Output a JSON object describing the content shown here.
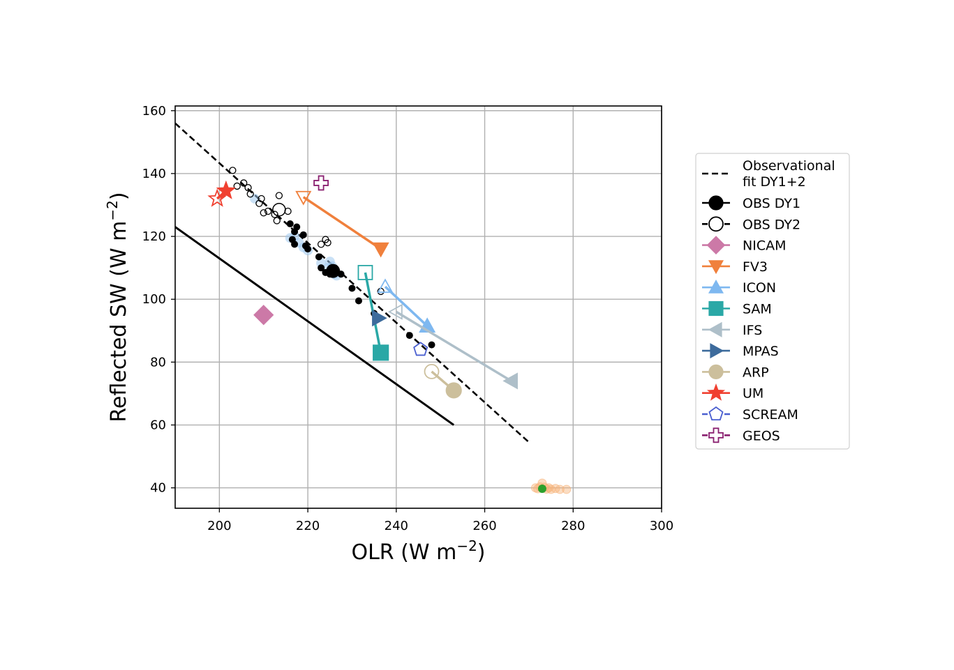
{
  "chart_data": {
    "type": "scatter",
    "xlabel": "OLR (W m",
    "xlabel_sup": "−2",
    "xlabel_tail": ")",
    "ylabel": "Reflected SW (W m",
    "ylabel_sup": "−2",
    "ylabel_tail": ")",
    "xlim": [
      190,
      300
    ],
    "ylim": [
      33.5,
      161.5
    ],
    "xticks": [
      200,
      220,
      240,
      260,
      280,
      300
    ],
    "yticks": [
      40,
      60,
      80,
      100,
      120,
      140,
      160
    ],
    "grid": true,
    "legend_position": "right, outside plot",
    "observational_fit": {
      "x": [
        190,
        270
      ],
      "y": [
        156,
        54.5
      ]
    },
    "reference_line": {
      "x": [
        190,
        253
      ],
      "y": [
        123,
        60
      ]
    },
    "obs_dy1_points": [
      [
        216,
        124
      ],
      [
        217,
        121.5
      ],
      [
        217.5,
        123
      ],
      [
        217,
        117.5
      ],
      [
        216.5,
        119
      ],
      [
        219,
        120.5
      ],
      [
        219.5,
        117
      ],
      [
        220,
        116
      ],
      [
        222.5,
        113.5
      ],
      [
        223,
        110
      ],
      [
        224,
        108.5
      ],
      [
        225,
        108
      ],
      [
        226,
        109
      ],
      [
        227.5,
        108
      ],
      [
        230,
        103.5
      ],
      [
        231.5,
        99.5
      ],
      [
        235,
        95.5
      ],
      [
        243,
        88.5
      ],
      [
        248,
        85.5
      ]
    ],
    "obs_dy1_mean": [
      225.7,
      109
    ],
    "obs_dy2_points": [
      [
        203,
        141
      ],
      [
        204,
        136
      ],
      [
        205.5,
        137
      ],
      [
        206.5,
        135.5
      ],
      [
        207,
        133.5
      ],
      [
        209,
        130.5
      ],
      [
        209.5,
        132
      ],
      [
        210,
        127.5
      ],
      [
        211,
        128
      ],
      [
        212.5,
        127
      ],
      [
        213,
        125
      ],
      [
        213.5,
        133
      ],
      [
        215.5,
        128
      ],
      [
        223,
        117.5
      ],
      [
        224,
        119
      ],
      [
        224.5,
        118
      ],
      [
        236.5,
        102.5
      ]
    ],
    "obs_dy2_mean": [
      213.5,
      128.5
    ],
    "icon_cloud": [
      [
        208,
        132
      ],
      [
        216,
        119.5
      ],
      [
        217,
        120
      ],
      [
        218,
        118
      ],
      [
        219,
        116.5
      ],
      [
        220,
        115.5
      ],
      [
        223,
        111.5
      ],
      [
        224.5,
        110
      ],
      [
        225,
        112
      ],
      [
        225.5,
        110.5
      ],
      [
        226,
        108
      ],
      [
        226.5,
        107.5
      ]
    ],
    "orange_cluster": [
      [
        271.5,
        40
      ],
      [
        272,
        39.7
      ],
      [
        272.5,
        40.3
      ],
      [
        273,
        41.5
      ],
      [
        273.5,
        40.2
      ],
      [
        274,
        39.6
      ],
      [
        274.5,
        40
      ],
      [
        275,
        39.5
      ],
      [
        276,
        39.8
      ],
      [
        277,
        39.5
      ],
      [
        278.5,
        39.5
      ]
    ],
    "green_point": [
      273,
      39.7
    ],
    "series": [
      {
        "name": "NICAM",
        "marker": "diamond",
        "color": "#cc79a7",
        "dy1": [
          210,
          95
        ],
        "dy2": null
      },
      {
        "name": "FV3",
        "marker": "triangle_down",
        "color": "#f0803c",
        "dy1": [
          236.5,
          116
        ],
        "dy2": [
          219,
          132.5
        ]
      },
      {
        "name": "ICON",
        "marker": "triangle_up",
        "color": "#7eb8f0",
        "dy1": [
          247,
          91.5
        ],
        "dy2": [
          237.5,
          104
        ]
      },
      {
        "name": "SAM",
        "marker": "square",
        "color": "#2aa8a6",
        "dy1": [
          236.5,
          83
        ],
        "dy2": [
          233,
          108.5
        ]
      },
      {
        "name": "IFS",
        "marker": "triangle_left",
        "color": "#aebfc9",
        "dy1": [
          266,
          74
        ],
        "dy2": [
          240,
          96
        ]
      },
      {
        "name": "MPAS",
        "marker": "triangle_right",
        "color": "#3d6b9c",
        "dy1": [
          236,
          94
        ],
        "dy2": null
      },
      {
        "name": "ARP",
        "marker": "circle",
        "color": "#ccbf9c",
        "dy1": [
          253,
          71
        ],
        "dy2": [
          248,
          77
        ]
      },
      {
        "name": "UM",
        "marker": "star",
        "color": "#f04030",
        "dy1": [
          201.5,
          134.5
        ],
        "dy2": [
          199.5,
          132
        ]
      },
      {
        "name": "SCREAM",
        "marker": "pentagon",
        "color": "#4a5fd0",
        "dy1": null,
        "dy2": [
          245.5,
          84
        ]
      },
      {
        "name": "GEOS",
        "marker": "plus",
        "color": "#8a2070",
        "dy1": null,
        "dy2": [
          223,
          137
        ]
      }
    ],
    "legend": [
      {
        "label_line1": "Observational",
        "label_line2": " fit DY1+2",
        "style": "dashed",
        "color": "#000000"
      },
      {
        "label_line1": "OBS DY1",
        "marker": "circle_filled",
        "color": "#000000"
      },
      {
        "label_line1": "OBS DY2",
        "marker": "circle_open",
        "color": "#000000"
      },
      {
        "label_line1": "NICAM",
        "marker": "diamond",
        "color": "#cc79a7"
      },
      {
        "label_line1": "FV3",
        "marker": "triangle_down",
        "color": "#f0803c"
      },
      {
        "label_line1": "ICON",
        "marker": "triangle_up",
        "color": "#7eb8f0"
      },
      {
        "label_line1": "SAM",
        "marker": "square",
        "color": "#2aa8a6"
      },
      {
        "label_line1": "IFS",
        "marker": "triangle_left",
        "color": "#aebfc9"
      },
      {
        "label_line1": "MPAS",
        "marker": "triangle_right",
        "color": "#3d6b9c"
      },
      {
        "label_line1": "ARP",
        "marker": "circle",
        "color": "#ccbf9c"
      },
      {
        "label_line1": "UM",
        "marker": "star",
        "color": "#f04030"
      },
      {
        "label_line1": "SCREAM",
        "marker": "pentagon_open",
        "color": "#4a5fd0"
      },
      {
        "label_line1": "GEOS",
        "marker": "plus_open",
        "color": "#8a2070"
      }
    ]
  }
}
